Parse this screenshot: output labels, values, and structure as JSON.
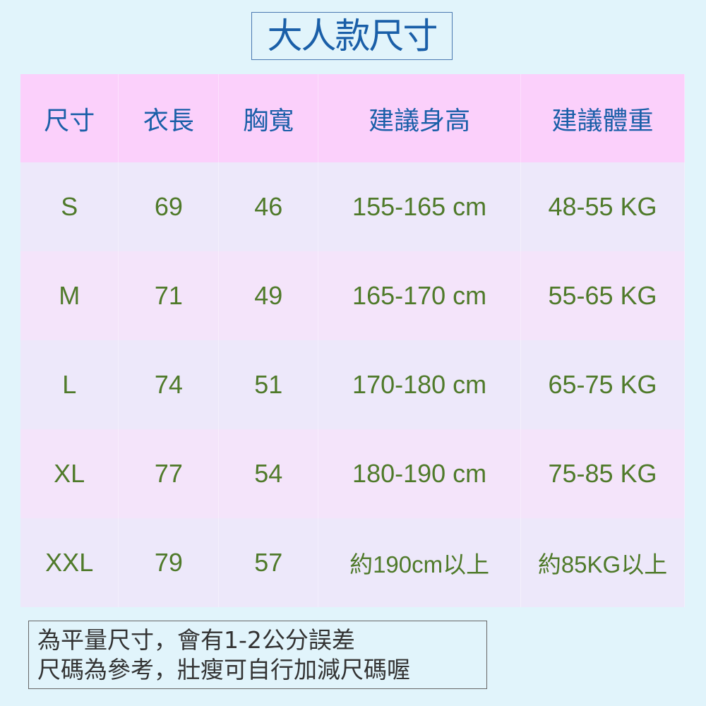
{
  "title": "大人款尺寸",
  "table": {
    "headers": [
      "尺寸",
      "衣長",
      "胸寬",
      "建議身高",
      "建議體重"
    ],
    "rows": [
      [
        "S",
        "69",
        "46",
        "155-165 cm",
        "48-55 KG"
      ],
      [
        "M",
        "71",
        "49",
        "165-170 cm",
        "55-65 KG"
      ],
      [
        "L",
        "74",
        "51",
        "170-180 cm",
        "65-75 KG"
      ],
      [
        "XL",
        "77",
        "54",
        "180-190 cm",
        "75-85 KG"
      ],
      [
        "XXL",
        "79",
        "57",
        "約190cm以上",
        "約85KG以上"
      ]
    ]
  },
  "note": {
    "line1": "為平量尺寸，會有1-2公分誤差",
    "line2": "尺碼為參考，壯瘦可自行加減尺碼喔"
  },
  "colors": {
    "background": "#e1f4fb",
    "header": "#fbd0fb",
    "header_text": "#1a5fa8",
    "value_text": "#4f7a2a"
  }
}
